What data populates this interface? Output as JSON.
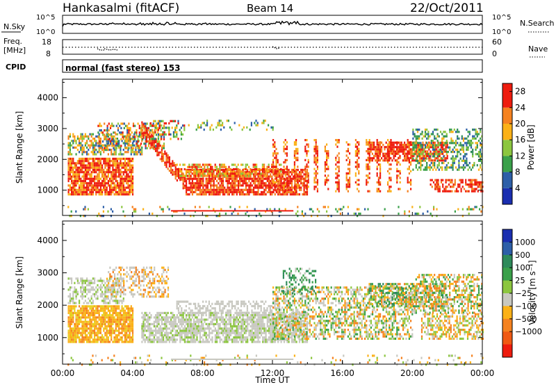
{
  "header": {
    "station": "Hankasalmi (fitACF)",
    "beam": "Beam 14",
    "date": "22/Oct/2011"
  },
  "noise_panel": {
    "left_label": "N.Sky",
    "right_label": "N.Search",
    "left_ticks": [
      "10^5",
      "10^0"
    ],
    "right_ticks": [
      "10^5",
      "10^0"
    ]
  },
  "freq_panel": {
    "left_label_1": "Freq.",
    "left_label_2": "[MHz]",
    "left_ticks": [
      "18",
      "8"
    ],
    "right_label": "Nave",
    "right_ticks": [
      "60",
      "0"
    ]
  },
  "cpid_panel": {
    "label": "CPID",
    "text": "normal (fast stereo) 153"
  },
  "time_axis": {
    "ticks": [
      "00:00",
      "04:00",
      "08:00",
      "12:00",
      "16:00",
      "20:00",
      "00:00"
    ],
    "label": "Time UT"
  },
  "colors": {
    "red": "#ee1c0e",
    "orange": "#f58220",
    "amber": "#fbb117",
    "yellow": "#e8d020",
    "lightgreen": "#8cc63f",
    "green": "#3aa04a",
    "darkgreen": "#2e8a5a",
    "blue": "#2d5fa8",
    "darkblue": "#1a2eb0",
    "grey": "#c8c8c0"
  },
  "chart_data": [
    {
      "type": "heatmap",
      "title": "",
      "xlabel": "",
      "ylabel": "Slant Range [km]",
      "yticks": [
        "1000",
        "2000",
        "3000",
        "4000"
      ],
      "ylim": [
        180,
        4600
      ],
      "xlim_hours": [
        0,
        24
      ],
      "colorbar": {
        "label": "Power [dB]",
        "ticks": [
          "4",
          "8",
          "12",
          "16",
          "20",
          "24",
          "28"
        ],
        "range": [
          0,
          30
        ],
        "bands": [
          {
            "from": 0,
            "to": 4,
            "color": "#1a2eb0"
          },
          {
            "from": 4,
            "to": 8,
            "color": "#2d5fa8"
          },
          {
            "from": 8,
            "to": 12,
            "color": "#3aa04a"
          },
          {
            "from": 12,
            "to": 16,
            "color": "#8cc63f"
          },
          {
            "from": 16,
            "to": 20,
            "color": "#fbb117"
          },
          {
            "from": 20,
            "to": 24,
            "color": "#f58220"
          },
          {
            "from": 24,
            "to": 30,
            "color": "#ee1c0e"
          }
        ]
      }
    },
    {
      "type": "heatmap",
      "title": "",
      "xlabel": "Time UT",
      "ylabel": "Slant Range [km]",
      "yticks": [
        "1000",
        "2000",
        "3000",
        "4000"
      ],
      "ylim": [
        180,
        4600
      ],
      "xlim_hours": [
        0,
        24
      ],
      "colorbar": {
        "label": "Velocity [m s⁻¹]",
        "ticks": [
          "1000",
          "500",
          "100",
          "25",
          "−25",
          "−100",
          "−500",
          "−1000"
        ],
        "bands": [
          {
            "color": "#1a2eb0"
          },
          {
            "color": "#2d5fa8"
          },
          {
            "color": "#2e8a5a"
          },
          {
            "color": "#3aa04a"
          },
          {
            "color": "#8cc63f"
          },
          {
            "color": "#c8c8c0"
          },
          {
            "color": "#fbb117"
          },
          {
            "color": "#f58220"
          },
          {
            "color": "#f05a14"
          },
          {
            "color": "#ee1c0e"
          }
        ]
      }
    }
  ]
}
